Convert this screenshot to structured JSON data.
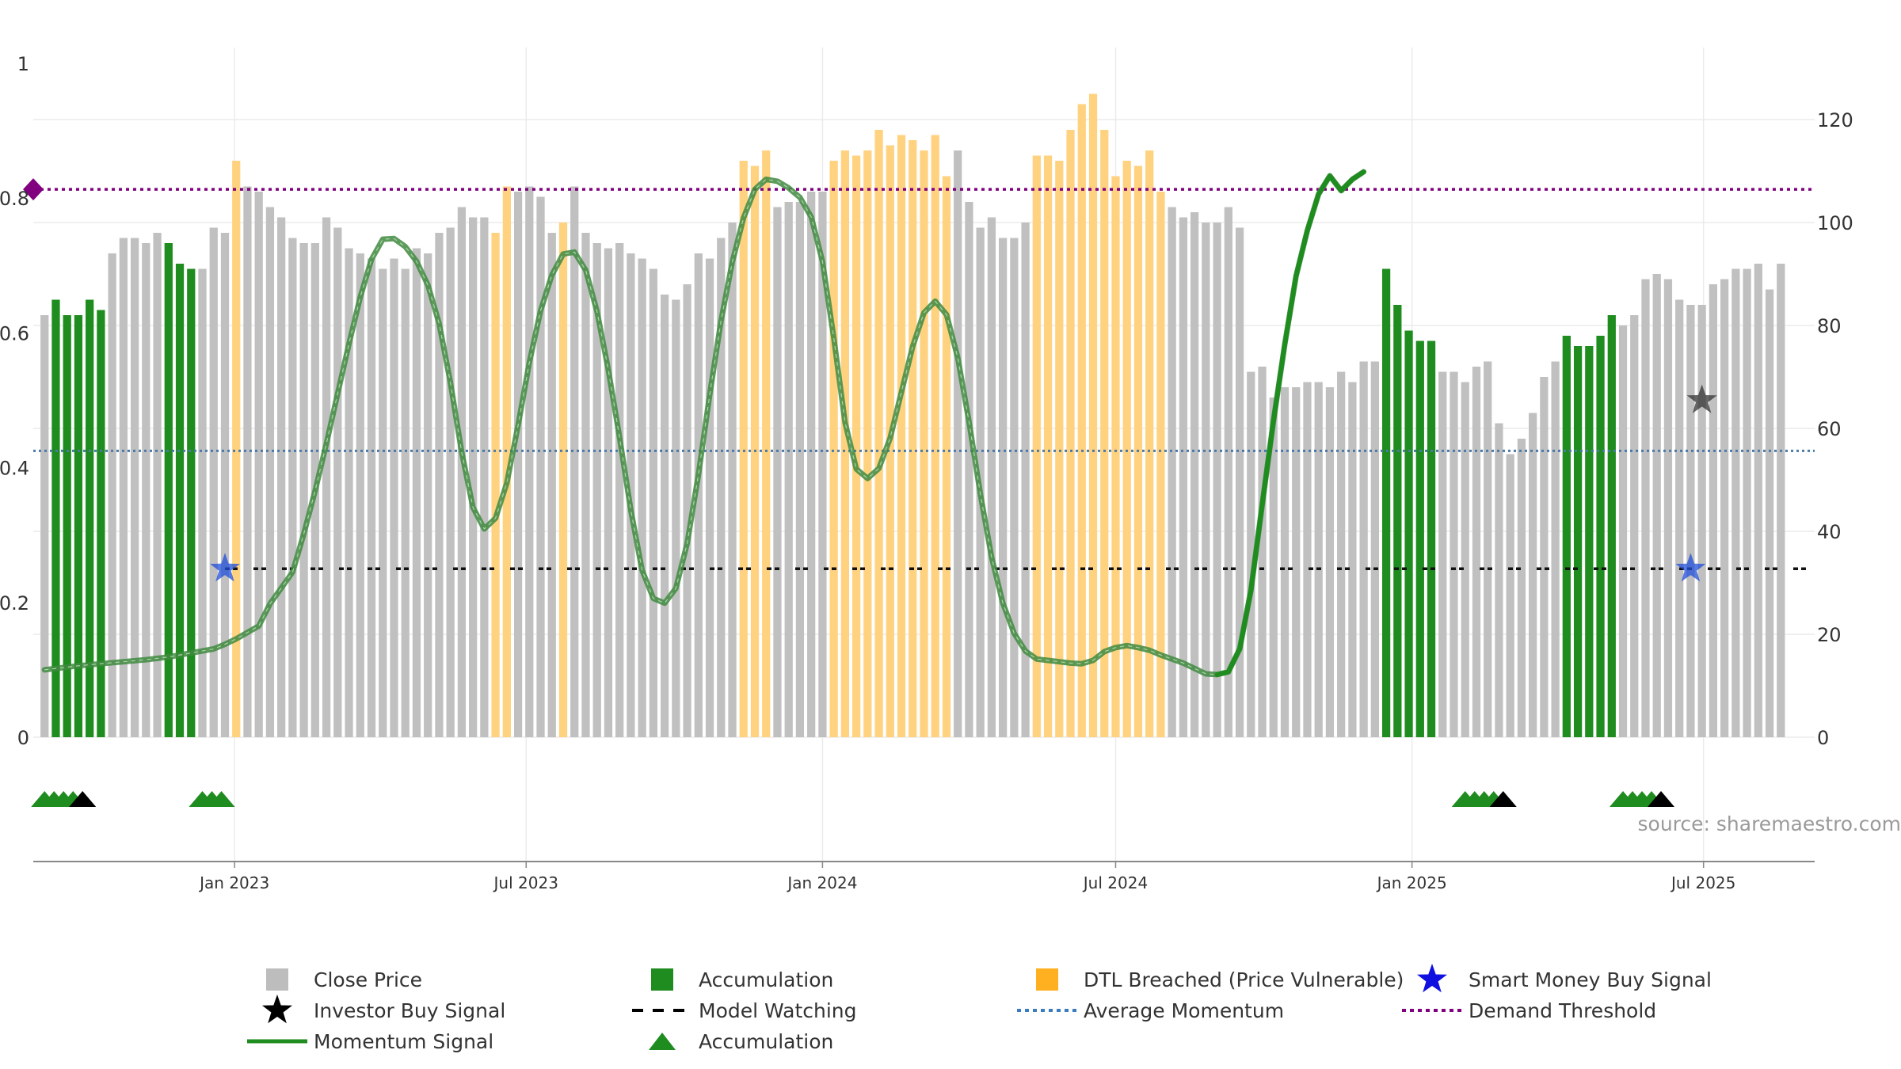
{
  "chart_data": {
    "type": "bar",
    "title": "",
    "source": "source: sharemaestro.com",
    "x_axis": {
      "type": "date",
      "start": "2022-08-29",
      "end": "2025-09-08",
      "tick_labels": [
        "Jan 2023",
        "Jul 2023",
        "Jan 2024",
        "Jul 2024",
        "Jan 2025",
        "Jul 2025"
      ]
    },
    "left_axis": {
      "range": [
        0,
        1
      ],
      "tick_labels": [
        "0",
        "0.2",
        "0.4",
        "0.6",
        "0.8",
        "1"
      ]
    },
    "right_axis": {
      "range": [
        0,
        132
      ],
      "tick_labels": [
        "0",
        "20",
        "40",
        "60",
        "80",
        "100",
        "120"
      ]
    },
    "close_price": {
      "start": "2022-09-05",
      "interval_days": 7,
      "values": [
        82,
        85,
        82,
        82,
        85,
        83,
        94,
        97,
        97,
        96,
        98,
        96,
        92,
        91,
        91,
        99,
        98,
        112,
        107,
        106,
        103,
        101,
        97,
        96,
        96,
        101,
        99,
        95,
        94,
        93,
        91,
        93,
        91,
        95,
        94,
        98,
        99,
        103,
        101,
        101,
        98,
        107,
        106,
        107,
        105,
        98,
        100,
        107,
        98,
        96,
        95,
        96,
        94,
        93,
        91,
        86,
        85,
        88,
        94,
        93,
        97,
        100,
        112,
        111,
        114,
        103,
        104,
        104,
        106,
        106,
        112,
        114,
        113,
        114,
        118,
        115,
        117,
        116,
        114,
        117,
        109,
        114,
        104,
        99,
        101,
        97,
        97,
        100,
        113,
        113,
        112,
        118,
        123,
        125,
        118,
        109,
        112,
        111,
        114,
        106,
        103,
        101,
        102,
        100,
        100,
        103,
        99,
        71,
        72,
        66,
        68,
        68,
        69,
        69,
        68,
        71,
        69,
        73,
        73,
        91,
        84,
        79,
        77,
        77,
        71,
        71,
        69,
        72,
        73,
        61,
        55,
        58,
        63,
        70,
        73,
        78,
        76,
        76,
        78,
        82,
        80,
        82,
        89,
        90,
        89,
        85,
        84,
        84,
        88,
        89,
        91,
        91,
        92,
        87,
        92
      ],
      "accumulation_ranges": [
        [
          1,
          5
        ],
        [
          11,
          13
        ],
        [
          119,
          123
        ],
        [
          135,
          139
        ]
      ],
      "dtl_breached_ranges": [
        [
          17,
          17
        ],
        [
          40,
          41
        ],
        [
          46,
          46
        ],
        [
          62,
          64
        ],
        [
          70,
          80
        ],
        [
          88,
          99
        ]
      ]
    },
    "momentum_signal": {
      "interval_days": 7,
      "values": [
        0.1,
        0.106,
        0.109,
        0.112,
        0.115,
        0.119,
        0.125,
        0.131,
        0.138,
        0.146,
        0.165,
        0.198,
        0.245,
        0.302,
        0.366,
        0.436,
        0.51,
        0.584,
        0.653,
        0.709,
        0.739,
        0.74,
        0.728,
        0.706,
        0.671,
        0.614,
        0.526,
        0.423,
        0.341,
        0.309,
        0.325,
        0.377,
        0.463,
        0.556,
        0.633,
        0.686,
        0.717,
        0.72,
        0.693,
        0.632,
        0.546,
        0.445,
        0.337,
        0.248,
        0.206,
        0.199,
        0.221,
        0.288,
        0.39,
        0.509,
        0.618,
        0.705,
        0.771,
        0.813,
        0.828,
        0.825,
        0.815,
        0.801,
        0.772,
        0.706,
        0.593,
        0.467,
        0.398,
        0.384,
        0.399,
        0.444,
        0.512,
        0.58,
        0.63,
        0.647,
        0.627,
        0.563,
        0.468,
        0.361,
        0.267,
        0.199,
        0.154,
        0.128,
        0.116,
        0.114,
        0.112,
        0.11,
        0.109,
        0.114,
        0.127,
        0.133,
        0.136,
        0.133,
        0.129,
        0.122,
        0.116,
        0.11,
        0.102,
        0.094,
        0.093,
        0.097,
        0.131,
        0.218,
        0.345,
        0.47,
        0.583,
        0.684,
        0.752,
        0.806,
        0.833,
        0.811,
        0.828,
        0.839
      ],
      "x_index": [
        0,
        3,
        5,
        7,
        9,
        11,
        13,
        15,
        16,
        17,
        19,
        20,
        22,
        23,
        24,
        25,
        26,
        27,
        28,
        29,
        30,
        31,
        32,
        33,
        34,
        35,
        36,
        37,
        38,
        39,
        40,
        41,
        42,
        43,
        44,
        45,
        46,
        47,
        48,
        49,
        50,
        51,
        52,
        53,
        54,
        55,
        56,
        57,
        58,
        59,
        60,
        61,
        62,
        63,
        64,
        65,
        66,
        67,
        68,
        69,
        70,
        71,
        72,
        73,
        74,
        75,
        76,
        77,
        78,
        79,
        80,
        81,
        82,
        83,
        84,
        85,
        86,
        87,
        88,
        89,
        90,
        91,
        92,
        93,
        94,
        95,
        96,
        97,
        98,
        99,
        100,
        101,
        102,
        103,
        104,
        105,
        106,
        107,
        108,
        109,
        110,
        111,
        112,
        113,
        114,
        115,
        116,
        117
      ]
    },
    "average_momentum": 0.425,
    "demand_threshold": 0.813,
    "model_watching": {
      "value": 0.25,
      "start": "2022-12-26",
      "end": "2025-09-08"
    },
    "smart_money_buy_signal": [
      {
        "date": "2022-12-26",
        "value": 0.25
      },
      {
        "date": "2025-06-23",
        "value": 0.25
      }
    ],
    "investor_buy_signal": [
      {
        "date": "2025-06-30",
        "value": 0.5
      }
    ],
    "accumulation_triangles": [
      {
        "start": "2022-09-05",
        "count": 4,
        "black_end": true
      },
      {
        "start": "2022-12-12",
        "count": 3,
        "black_end": false
      },
      {
        "start": "2025-02-03",
        "count": 4,
        "black_end": true
      },
      {
        "start": "2025-05-12",
        "count": 4,
        "black_end": true
      }
    ],
    "colors": {
      "close_price": "#c0c0c0",
      "accumulation": "#1e8c1e",
      "dtl_breached": "#ffd280",
      "momentum": "#3f8a3f",
      "momentum_strong": "#1e8c1e",
      "average_momentum": "#4a7aa8",
      "demand_threshold": "#800080",
      "model_watching": "#111111",
      "smart_money": "#1f4fd8",
      "investor": "#333333"
    },
    "legend": [
      {
        "label": "Close Price",
        "kind": "square",
        "color": "#bdbdbd"
      },
      {
        "label": "Accumulation",
        "kind": "square",
        "color": "#1e8c1e"
      },
      {
        "label": "DTL Breached (Price Vulnerable)",
        "kind": "square",
        "color": "#ffb020"
      },
      {
        "label": "Smart Money Buy Signal",
        "kind": "star",
        "color": "#1010e0"
      },
      {
        "label": "Investor Buy Signal",
        "kind": "star",
        "color": "#000000"
      },
      {
        "label": "Model Watching",
        "kind": "dash",
        "color": "#000000"
      },
      {
        "label": "Average Momentum",
        "kind": "dot",
        "color": "#3b7bbf"
      },
      {
        "label": "Demand Threshold",
        "kind": "dot",
        "color": "#800080"
      },
      {
        "label": "Momentum Signal",
        "kind": "line",
        "color": "#1e8c1e"
      },
      {
        "label": "Accumulation",
        "kind": "triangle",
        "color": "#1e8c1e"
      }
    ]
  }
}
